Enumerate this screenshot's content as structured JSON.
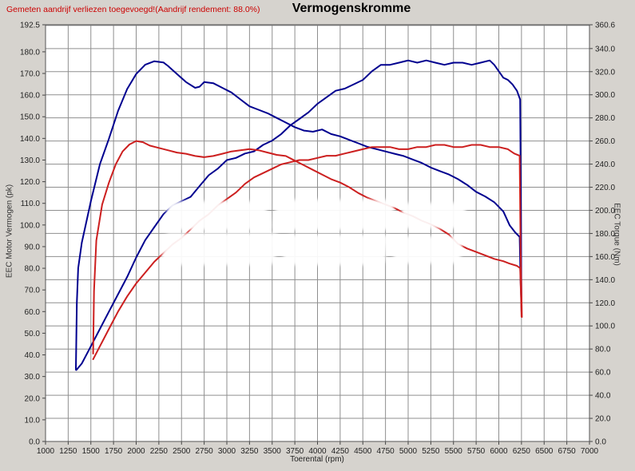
{
  "annotation": {
    "text": "Gemeten aandrijf verliezen toegevoegd!(Aandrijf rendement: 88.0%)",
    "color": "#cc0000"
  },
  "title": "Vermogenskromme",
  "chart_data": {
    "type": "line",
    "title": "Vermogenskromme",
    "xlabel": "Toerental (rpm)",
    "ylabel_left": "EEC Motor Vermogen (pk)",
    "ylabel_right": "EEC Torque (Nm)",
    "grid": true,
    "legend": "none",
    "x_range": [
      1000,
      7000
    ],
    "x_ticks": [
      1000,
      1250,
      1500,
      1750,
      2000,
      2250,
      2500,
      2750,
      3000,
      3250,
      3500,
      3750,
      4000,
      4250,
      4500,
      4750,
      5000,
      5250,
      5500,
      5750,
      6000,
      6250,
      6500,
      6750,
      7000
    ],
    "y_left_range": [
      0,
      192.5
    ],
    "y_left_ticks": [
      192.5,
      180,
      170,
      160,
      150,
      140,
      130,
      120,
      110,
      100,
      90,
      80,
      70,
      60,
      50,
      40,
      30,
      20,
      10,
      0
    ],
    "y_right_range": [
      0,
      360.6
    ],
    "y_right_ticks": [
      360.6,
      340,
      320,
      300,
      280,
      260,
      240,
      220,
      200,
      180,
      160,
      140,
      120,
      100,
      80,
      60,
      40,
      20,
      0
    ],
    "grid_y_step_right_axis": 20,
    "colors": {
      "run_blue": "#00008f",
      "run_red": "#cc1f1f"
    },
    "series": [
      {
        "name": "power-blue-run",
        "axis": "left",
        "unit": "pk",
        "color": "#00008f",
        "points": [
          [
            1340,
            33
          ],
          [
            1400,
            36
          ],
          [
            1500,
            44
          ],
          [
            1600,
            52
          ],
          [
            1700,
            60
          ],
          [
            1800,
            68
          ],
          [
            1900,
            76
          ],
          [
            2000,
            85
          ],
          [
            2100,
            93
          ],
          [
            2200,
            99
          ],
          [
            2300,
            105
          ],
          [
            2400,
            109
          ],
          [
            2500,
            111
          ],
          [
            2600,
            113
          ],
          [
            2700,
            118
          ],
          [
            2800,
            123
          ],
          [
            2900,
            126
          ],
          [
            3000,
            130
          ],
          [
            3100,
            131
          ],
          [
            3200,
            133
          ],
          [
            3300,
            134
          ],
          [
            3400,
            137
          ],
          [
            3500,
            139
          ],
          [
            3600,
            142
          ],
          [
            3700,
            146
          ],
          [
            3800,
            149
          ],
          [
            3900,
            152
          ],
          [
            4000,
            156
          ],
          [
            4100,
            159
          ],
          [
            4200,
            162
          ],
          [
            4300,
            163
          ],
          [
            4400,
            165
          ],
          [
            4500,
            167
          ],
          [
            4600,
            171
          ],
          [
            4700,
            174
          ],
          [
            4800,
            174
          ],
          [
            4900,
            175
          ],
          [
            5000,
            176
          ],
          [
            5100,
            175
          ],
          [
            5200,
            176
          ],
          [
            5300,
            175
          ],
          [
            5400,
            174
          ],
          [
            5500,
            175
          ],
          [
            5600,
            175
          ],
          [
            5700,
            174
          ],
          [
            5800,
            175
          ],
          [
            5900,
            176
          ],
          [
            5950,
            174
          ],
          [
            6000,
            171
          ],
          [
            6050,
            168
          ],
          [
            6100,
            167
          ],
          [
            6150,
            165
          ],
          [
            6200,
            162
          ],
          [
            6235,
            158
          ],
          [
            6245,
            100
          ],
          [
            6250,
            60
          ]
        ]
      },
      {
        "name": "torque-blue-run",
        "axis": "right",
        "unit": "Nm",
        "color": "#00008f",
        "points": [
          [
            1335,
            62
          ],
          [
            1345,
            120
          ],
          [
            1360,
            150
          ],
          [
            1400,
            172
          ],
          [
            1450,
            190
          ],
          [
            1500,
            208
          ],
          [
            1600,
            240
          ],
          [
            1700,
            262
          ],
          [
            1800,
            286
          ],
          [
            1900,
            305
          ],
          [
            2000,
            318
          ],
          [
            2100,
            326
          ],
          [
            2200,
            329
          ],
          [
            2300,
            328
          ],
          [
            2350,
            325
          ],
          [
            2450,
            318
          ],
          [
            2550,
            311
          ],
          [
            2650,
            306
          ],
          [
            2700,
            307
          ],
          [
            2750,
            311
          ],
          [
            2850,
            310
          ],
          [
            2950,
            306
          ],
          [
            3050,
            302
          ],
          [
            3150,
            296
          ],
          [
            3250,
            290
          ],
          [
            3350,
            287
          ],
          [
            3450,
            284
          ],
          [
            3550,
            280
          ],
          [
            3650,
            276
          ],
          [
            3750,
            272
          ],
          [
            3850,
            269
          ],
          [
            3950,
            268
          ],
          [
            4050,
            270
          ],
          [
            4150,
            266
          ],
          [
            4250,
            264
          ],
          [
            4350,
            261
          ],
          [
            4450,
            258
          ],
          [
            4550,
            255
          ],
          [
            4650,
            253
          ],
          [
            4750,
            251
          ],
          [
            4850,
            249
          ],
          [
            4950,
            247
          ],
          [
            5050,
            244
          ],
          [
            5150,
            241
          ],
          [
            5250,
            237
          ],
          [
            5350,
            234
          ],
          [
            5450,
            231
          ],
          [
            5550,
            227
          ],
          [
            5650,
            222
          ],
          [
            5750,
            216
          ],
          [
            5850,
            212
          ],
          [
            5950,
            207
          ],
          [
            6050,
            199
          ],
          [
            6120,
            187
          ],
          [
            6180,
            181
          ],
          [
            6230,
            177
          ],
          [
            6240,
            140
          ],
          [
            6250,
            116
          ]
        ]
      },
      {
        "name": "power-red-run",
        "axis": "left",
        "unit": "pk",
        "color": "#cc1f1f",
        "points": [
          [
            1525,
            38
          ],
          [
            1600,
            44
          ],
          [
            1700,
            52
          ],
          [
            1800,
            60
          ],
          [
            1900,
            67
          ],
          [
            2000,
            73
          ],
          [
            2100,
            78
          ],
          [
            2200,
            83
          ],
          [
            2300,
            87
          ],
          [
            2400,
            91
          ],
          [
            2500,
            94
          ],
          [
            2600,
            98
          ],
          [
            2700,
            102
          ],
          [
            2800,
            105
          ],
          [
            2900,
            109
          ],
          [
            3000,
            112
          ],
          [
            3100,
            115
          ],
          [
            3200,
            119
          ],
          [
            3300,
            122
          ],
          [
            3400,
            124
          ],
          [
            3500,
            126
          ],
          [
            3600,
            128
          ],
          [
            3700,
            129
          ],
          [
            3800,
            130
          ],
          [
            3900,
            130
          ],
          [
            4000,
            131
          ],
          [
            4100,
            132
          ],
          [
            4200,
            132
          ],
          [
            4300,
            133
          ],
          [
            4400,
            134
          ],
          [
            4500,
            135
          ],
          [
            4600,
            136
          ],
          [
            4700,
            136
          ],
          [
            4800,
            136
          ],
          [
            4900,
            135
          ],
          [
            5000,
            135
          ],
          [
            5100,
            136
          ],
          [
            5200,
            136
          ],
          [
            5300,
            137
          ],
          [
            5400,
            137
          ],
          [
            5500,
            136
          ],
          [
            5600,
            136
          ],
          [
            5700,
            137
          ],
          [
            5800,
            137
          ],
          [
            5900,
            136
          ],
          [
            6000,
            136
          ],
          [
            6100,
            135
          ],
          [
            6170,
            133
          ],
          [
            6230,
            132
          ],
          [
            6240,
            90
          ],
          [
            6255,
            57.5
          ]
        ]
      },
      {
        "name": "torque-red-run",
        "axis": "right",
        "unit": "Nm",
        "color": "#cc1f1f",
        "points": [
          [
            1525,
            76
          ],
          [
            1535,
            130
          ],
          [
            1560,
            174
          ],
          [
            1625,
            205
          ],
          [
            1700,
            224
          ],
          [
            1775,
            240
          ],
          [
            1850,
            251
          ],
          [
            1925,
            257
          ],
          [
            2000,
            260
          ],
          [
            2075,
            259
          ],
          [
            2150,
            256
          ],
          [
            2250,
            254
          ],
          [
            2350,
            252
          ],
          [
            2450,
            250
          ],
          [
            2550,
            249
          ],
          [
            2650,
            247
          ],
          [
            2750,
            246
          ],
          [
            2850,
            247
          ],
          [
            2950,
            249
          ],
          [
            3050,
            251
          ],
          [
            3150,
            252
          ],
          [
            3250,
            253
          ],
          [
            3350,
            252
          ],
          [
            3450,
            250
          ],
          [
            3550,
            248
          ],
          [
            3650,
            247
          ],
          [
            3749,
            243
          ],
          [
            3850,
            239
          ],
          [
            3950,
            235
          ],
          [
            4050,
            231
          ],
          [
            4150,
            227
          ],
          [
            4250,
            224
          ],
          [
            4350,
            220
          ],
          [
            4450,
            215
          ],
          [
            4550,
            211
          ],
          [
            4650,
            208
          ],
          [
            4750,
            205
          ],
          [
            4850,
            202
          ],
          [
            4950,
            198
          ],
          [
            5050,
            195
          ],
          [
            5150,
            191
          ],
          [
            5250,
            188
          ],
          [
            5350,
            184
          ],
          [
            5450,
            179
          ],
          [
            5550,
            171
          ],
          [
            5650,
            167
          ],
          [
            5750,
            164
          ],
          [
            5850,
            161
          ],
          [
            5950,
            158
          ],
          [
            6050,
            156
          ],
          [
            6115,
            154
          ],
          [
            6200,
            152
          ],
          [
            6235,
            150
          ],
          [
            6245,
            125
          ],
          [
            6250,
            108
          ]
        ]
      }
    ]
  }
}
